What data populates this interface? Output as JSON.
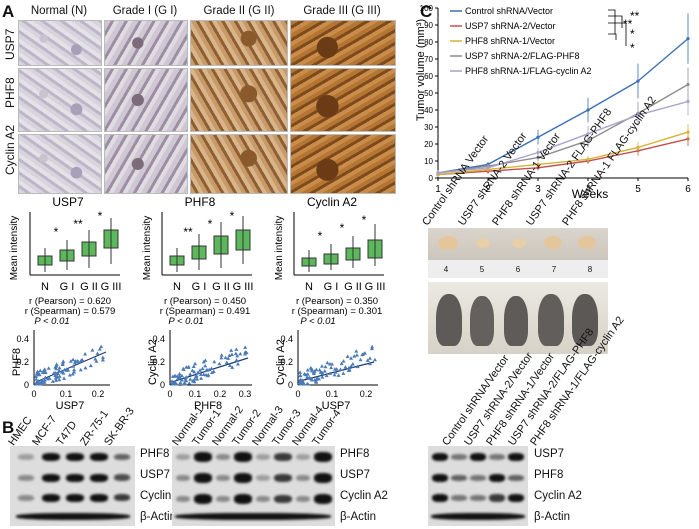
{
  "panel_labels": {
    "a": "A",
    "b": "B",
    "c": "C"
  },
  "ihc": {
    "columns": [
      "Normal (N)",
      "Grade I (G I)",
      "Grade II (G II)",
      "Grade III (G III)"
    ],
    "rows": [
      "USP7",
      "PHF8",
      "Cyclin A2"
    ]
  },
  "boxplots": [
    {
      "title": "USP7",
      "ylabel": "Mean intensity",
      "categories": [
        "N",
        "G I",
        "G II",
        "G III"
      ],
      "pearson": "r (Pearson) = 0.620",
      "spearman": "r (Spearman) = 0.579",
      "p": "P < 0.01",
      "stars": [
        "*",
        "**",
        "*"
      ]
    },
    {
      "title": "PHF8",
      "ylabel": "Mean intensity",
      "categories": [
        "N",
        "G I",
        "G II",
        "G III"
      ],
      "pearson": "r (Pearson) = 0.450",
      "spearman": "r (Spearman) = 0.491",
      "p": "P < 0.01",
      "stars": [
        "**",
        "*",
        "*"
      ]
    },
    {
      "title": "Cyclin A2",
      "ylabel": "Mean intensity",
      "categories": [
        "N",
        "G I",
        "G II",
        "G III"
      ],
      "pearson": "r (Pearson) = 0.350",
      "spearman": "r (Spearman) = 0.301",
      "p": "P < 0.01",
      "stars": [
        "*",
        "*",
        "*"
      ]
    }
  ],
  "scatters": [
    {
      "ylabel": "PHF8",
      "xlabel": "USP7",
      "xticks": [
        "0",
        "0.1",
        "0.2"
      ],
      "yticks": [
        "0",
        "0.2",
        "0.4"
      ]
    },
    {
      "ylabel": "Cyclin A2",
      "xlabel": "PHF8",
      "xticks": [
        "0",
        "0.1",
        "0.2",
        "0.3"
      ],
      "yticks": [
        "0",
        "0.2",
        "0.4"
      ]
    },
    {
      "ylabel": "Cyclin A2",
      "xlabel": "USP7",
      "xticks": [
        "0",
        "0.1",
        "0.2"
      ],
      "yticks": [
        "0",
        "0.2",
        "0.4"
      ]
    }
  ],
  "blots": {
    "cell_lines": [
      "HMEC",
      "MCF-7",
      "T47D",
      "ZR-75-1",
      "SK-BR-3"
    ],
    "tissues": [
      "Normal-1",
      "Tumor-1",
      "Normal-2",
      "Tumor-2",
      "Normal-3",
      "Tumor-3",
      "Normal-4",
      "Tumor-4"
    ],
    "knockdown": [
      "Control shRNA/Vector",
      "USP7 shRNA-2/Vector",
      "PHF8 shRNA-1/Vector",
      "USP7 shRNA-2/FLAG-PHF8",
      "PHF8 shRNA-1/FLAG-cyclin A2"
    ],
    "left_labels": [
      "PHF8",
      "USP7",
      "Cyclin A2",
      "β-Actin"
    ],
    "mid_labels": [
      "PHF8",
      "USP7",
      "Cyclin A2",
      "β-Actin"
    ],
    "right_labels": [
      "USP7",
      "PHF8",
      "Cyclin A2",
      "β-Actin"
    ]
  },
  "tumor_photo": {
    "lanes": [
      "Control shRNA Vector",
      "USP7 shRNA-2 Vector",
      "PHF8 shRNA-1 Vector",
      "USP7 shRNA-2 FLAG-PHF8",
      "PHF8 shRNA-1 FLAG-cyclin A2"
    ],
    "ruler": [
      "4",
      "5",
      "6",
      "7",
      "8"
    ]
  },
  "colors": {
    "box": "#5cb85c",
    "scatter": "#4a7ab8",
    "s1": "#3b6fb6",
    "s2": "#c0504d",
    "s3": "#d8b33a",
    "s4": "#8e8e8e",
    "s5": "#a9a0cc"
  },
  "chart_data": {
    "type": "line",
    "xlabel": "Weeks",
    "ylabel": "Tumor volume (mm³)",
    "x": [
      1,
      2,
      3,
      4,
      5,
      6
    ],
    "ylim": [
      0,
      100
    ],
    "yticks": [
      0,
      10,
      20,
      30,
      40,
      50,
      60,
      70,
      80,
      90,
      100
    ],
    "series": [
      {
        "name": "Control shRNA/Vector",
        "values": [
          3,
          8,
          24,
          40,
          57,
          82
        ]
      },
      {
        "name": "USP7 shRNA-2/Vector",
        "values": [
          2,
          4,
          6,
          10,
          16,
          23
        ]
      },
      {
        "name": "PHF8 shRNA-1/Vector",
        "values": [
          2,
          5,
          8,
          11,
          18,
          27
        ]
      },
      {
        "name": "USP7 shRNA-2/FLAG-PHF8",
        "values": [
          3,
          7,
          12,
          22,
          38,
          55
        ]
      },
      {
        "name": "PHF8 shRNA-1/FLAG-cyclin A2",
        "values": [
          3,
          6,
          15,
          26,
          37,
          45
        ]
      }
    ],
    "significance": [
      "**",
      "**",
      "*",
      "*"
    ]
  }
}
